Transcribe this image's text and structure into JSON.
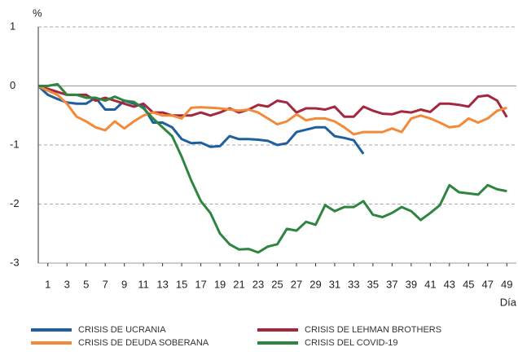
{
  "chart_data": {
    "type": "line",
    "y_label": "%",
    "x_label": "Día",
    "x": [
      0,
      1,
      2,
      3,
      4,
      5,
      6,
      7,
      8,
      9,
      10,
      11,
      12,
      13,
      14,
      15,
      16,
      17,
      18,
      19,
      20,
      21,
      22,
      23,
      24,
      25,
      26,
      27,
      28,
      29,
      30,
      31,
      32,
      33,
      34,
      35,
      36,
      37,
      38,
      39,
      40,
      41,
      42,
      43,
      44,
      45,
      46,
      47,
      48,
      49
    ],
    "xlim": [
      0,
      50
    ],
    "xticks": [
      1,
      3,
      5,
      7,
      9,
      11,
      13,
      15,
      17,
      19,
      21,
      23,
      25,
      27,
      29,
      31,
      33,
      35,
      37,
      39,
      41,
      43,
      45,
      47,
      49
    ],
    "ylim": [
      -3,
      1
    ],
    "yticks": [
      1,
      0,
      -1,
      -2,
      -3
    ],
    "grid": true,
    "legend": "bottom",
    "series": [
      {
        "name": "CRISIS DE UCRANIA",
        "color": "#1f5fa0",
        "values": [
          0,
          -0.15,
          -0.22,
          -0.28,
          -0.3,
          -0.3,
          -0.2,
          -0.4,
          -0.4,
          -0.25,
          -0.3,
          -0.35,
          -0.62,
          -0.62,
          -0.7,
          -0.9,
          -0.97,
          -0.96,
          -1.03,
          -1.02,
          -0.85,
          -0.9,
          -0.9,
          -0.91,
          -0.93,
          -1.0,
          -0.97,
          -0.78,
          -0.74,
          -0.7,
          -0.7,
          -0.85,
          -0.88,
          -0.92,
          -1.15,
          null,
          null,
          null,
          null,
          null,
          null,
          null,
          null,
          null,
          null,
          null,
          null,
          null,
          null,
          null
        ]
      },
      {
        "name": "CRISIS DE LEHMAN BROTHERS",
        "color": "#a3283e",
        "values": [
          0,
          -0.05,
          -0.1,
          -0.15,
          -0.15,
          -0.15,
          -0.25,
          -0.2,
          -0.25,
          -0.3,
          -0.35,
          -0.3,
          -0.45,
          -0.45,
          -0.5,
          -0.5,
          -0.5,
          -0.45,
          -0.5,
          -0.45,
          -0.38,
          -0.45,
          -0.4,
          -0.32,
          -0.35,
          -0.25,
          -0.28,
          -0.45,
          -0.38,
          -0.38,
          -0.4,
          -0.35,
          -0.52,
          -0.52,
          -0.35,
          -0.42,
          -0.47,
          -0.48,
          -0.43,
          -0.45,
          -0.4,
          -0.44,
          -0.3,
          -0.3,
          -0.32,
          -0.35,
          -0.18,
          -0.16,
          -0.25,
          -0.53
        ]
      },
      {
        "name": "CRISIS DE DEUDA SOBERANA",
        "color": "#f28a3a",
        "values": [
          0,
          -0.08,
          -0.15,
          -0.3,
          -0.52,
          -0.6,
          -0.7,
          -0.75,
          -0.6,
          -0.72,
          -0.6,
          -0.5,
          -0.45,
          -0.5,
          -0.5,
          -0.55,
          -0.37,
          -0.36,
          -0.37,
          -0.38,
          -0.4,
          -0.42,
          -0.4,
          -0.45,
          -0.55,
          -0.65,
          -0.6,
          -0.48,
          -0.58,
          -0.55,
          -0.55,
          -0.6,
          -0.7,
          -0.82,
          -0.78,
          -0.78,
          -0.78,
          -0.72,
          -0.78,
          -0.55,
          -0.5,
          -0.55,
          -0.62,
          -0.7,
          -0.68,
          -0.55,
          -0.62,
          -0.55,
          -0.42,
          -0.37
        ]
      },
      {
        "name": "CRISIS DEL COVID-19",
        "color": "#2e8540",
        "values": [
          0,
          0,
          0.03,
          -0.15,
          -0.15,
          -0.2,
          -0.2,
          -0.25,
          -0.18,
          -0.25,
          -0.27,
          -0.38,
          -0.55,
          -0.7,
          -0.85,
          -1.2,
          -1.6,
          -1.95,
          -2.15,
          -2.5,
          -2.68,
          -2.77,
          -2.76,
          -2.82,
          -2.72,
          -2.68,
          -2.42,
          -2.45,
          -2.3,
          -2.35,
          -2.02,
          -2.12,
          -2.05,
          -2.05,
          -1.95,
          -2.18,
          -2.22,
          -2.15,
          -2.05,
          -2.12,
          -2.27,
          -2.15,
          -2.02,
          -1.68,
          -1.8,
          -1.82,
          -1.84,
          -1.68,
          -1.75,
          -1.78
        ]
      }
    ]
  }
}
